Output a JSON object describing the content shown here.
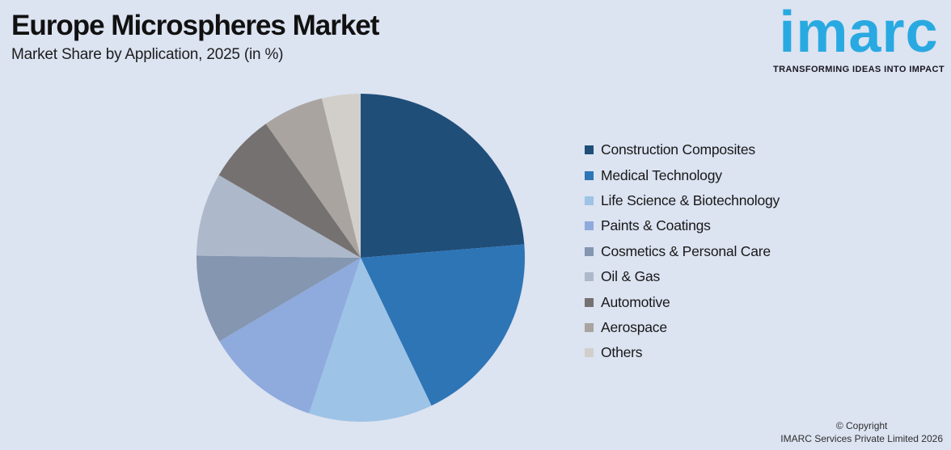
{
  "header": {
    "title": "Europe Microspheres Market",
    "subtitle": "Market Share by Application, 2025 (in %)"
  },
  "logo": {
    "wordmark": "imarc",
    "tagline": "TRANSFORMING IDEAS INTO IMPACT",
    "brand_color": "#29a9e1"
  },
  "footer": {
    "line1": "© Copyright",
    "line2": "IMARC Services Private Limited 2026"
  },
  "chart_data": {
    "type": "pie",
    "title": "Europe Microspheres Market",
    "subtitle": "Market Share by Application, 2025 (in %)",
    "unit": "%",
    "categories": [
      "Construction Composites",
      "Medical Technology",
      "Life Science & Biotechnology",
      "Paints & Coatings",
      "Cosmetics & Personal Care",
      "Oil & Gas",
      "Automotive",
      "Aerospace",
      "Others"
    ],
    "values": [
      23.7,
      19.2,
      12.2,
      11.4,
      8.7,
      8.2,
      6.8,
      6.0,
      3.8
    ],
    "colors": [
      "#1f4e79",
      "#2e75b6",
      "#9dc3e6",
      "#8faadc",
      "#8496b0",
      "#adb9ca",
      "#767171",
      "#aaa4a0",
      "#d2cfcb"
    ],
    "start_angle_deg": 0,
    "direction": "clockwise",
    "legend_position": "right",
    "data_labels_shown": false,
    "background_color": "#dce3f1"
  }
}
